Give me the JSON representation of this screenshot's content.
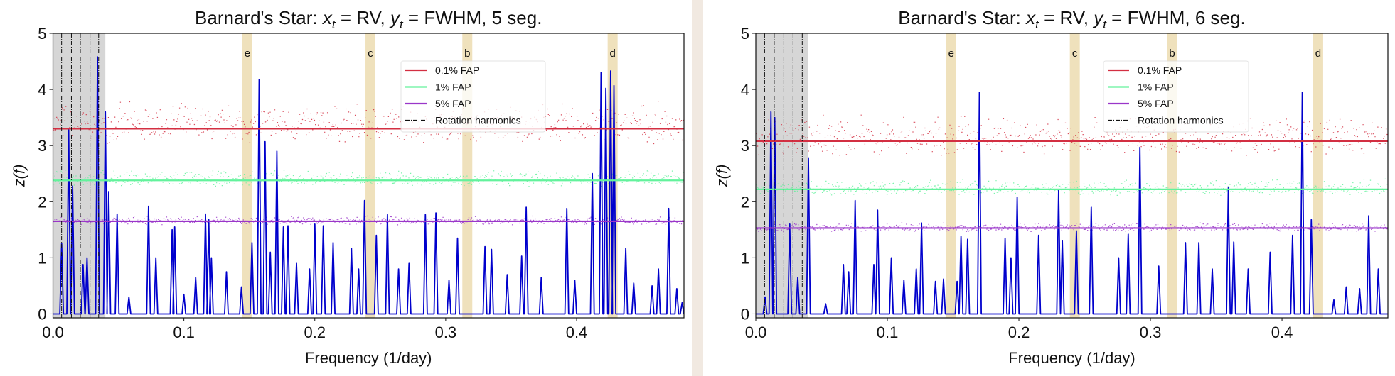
{
  "chart_data": [
    {
      "type": "line",
      "title": "Barnard's Star: x_t =  RV, y_t =  FWHM, 5 seg.",
      "title_parts": {
        "prefix": "Barnard's Star: ",
        "x": "x",
        "xsub": "t",
        "eq1": " =  RV, ",
        "y": "y",
        "ysub": "t",
        "eq2": " =  FWHM, 5 seg."
      },
      "xlabel": "Frequency (1/day)",
      "ylabel": "z(f)",
      "xlim": [
        0,
        0.482
      ],
      "ylim": [
        -0.07,
        5
      ],
      "xticks": [
        "0.0",
        "0.1",
        "0.2",
        "0.3",
        "0.4"
      ],
      "xtick_values": [
        0,
        0.1,
        0.2,
        0.3,
        0.4
      ],
      "yticks": [
        "0",
        "1",
        "2",
        "3",
        "4",
        "5"
      ],
      "legend": {
        "placement": "upper-center-right",
        "entries": [
          "0.1% FAP",
          "1% FAP",
          "5% FAP",
          "Rotation harmonics"
        ]
      },
      "fap_levels": [
        {
          "name": "0.1% FAP",
          "value": 3.3,
          "color": "#d32f42"
        },
        {
          "name": "1% FAP",
          "value": 2.38,
          "color": "#63f29c"
        },
        {
          "name": "5% FAP",
          "value": 1.65,
          "color": "#9a36c9"
        }
      ],
      "rotation_region": [
        0,
        0.04
      ],
      "rotation_harmonics": [
        0.0066,
        0.0141,
        0.0209,
        0.0283,
        0.0349
      ],
      "planets": [
        {
          "label": "e",
          "freq": 0.1485
        },
        {
          "label": "c",
          "freq": 0.2425
        },
        {
          "label": "b",
          "freq": 0.3165
        },
        {
          "label": "d",
          "freq": 0.4275
        }
      ],
      "series_color": "#0000cc",
      "peaks": [
        [
          0.0066,
          1.25
        ],
        [
          0.012,
          3.28
        ],
        [
          0.015,
          2.28
        ],
        [
          0.023,
          0.88
        ],
        [
          0.026,
          1.0
        ],
        [
          0.034,
          4.58
        ],
        [
          0.04,
          3.6
        ],
        [
          0.0426,
          2.18
        ],
        [
          0.049,
          1.78
        ],
        [
          0.058,
          0.3
        ],
        [
          0.073,
          1.92
        ],
        [
          0.0786,
          1.0
        ],
        [
          0.091,
          1.5
        ],
        [
          0.093,
          1.55
        ],
        [
          0.1,
          0.35
        ],
        [
          0.109,
          0.65
        ],
        [
          0.1165,
          1.78
        ],
        [
          0.119,
          1.68
        ],
        [
          0.121,
          1.0
        ],
        [
          0.1325,
          0.75
        ],
        [
          0.144,
          0.48
        ],
        [
          0.152,
          1.27
        ],
        [
          0.1575,
          4.18
        ],
        [
          0.162,
          3.07
        ],
        [
          0.166,
          1.1
        ],
        [
          0.171,
          2.9
        ],
        [
          0.176,
          1.55
        ],
        [
          0.1795,
          1.57
        ],
        [
          0.186,
          0.9
        ],
        [
          0.196,
          0.8
        ],
        [
          0.2,
          1.6
        ],
        [
          0.2065,
          1.57
        ],
        [
          0.214,
          1.27
        ],
        [
          0.228,
          1.17
        ],
        [
          0.2335,
          0.8
        ],
        [
          0.238,
          2.02
        ],
        [
          0.247,
          1.4
        ],
        [
          0.2555,
          1.77
        ],
        [
          0.264,
          0.8
        ],
        [
          0.272,
          0.9
        ],
        [
          0.2845,
          1.77
        ],
        [
          0.2925,
          1.8
        ],
        [
          0.3025,
          0.6
        ],
        [
          0.309,
          1.35
        ],
        [
          0.33,
          1.2
        ],
        [
          0.335,
          1.15
        ],
        [
          0.347,
          0.7
        ],
        [
          0.358,
          1.03
        ],
        [
          0.3615,
          1.9
        ],
        [
          0.373,
          0.65
        ],
        [
          0.3925,
          1.88
        ],
        [
          0.3986,
          0.6
        ],
        [
          0.412,
          2.5
        ],
        [
          0.4187,
          4.3
        ],
        [
          0.4223,
          4.02
        ],
        [
          0.426,
          4.33
        ],
        [
          0.4285,
          4.07
        ],
        [
          0.4375,
          1.17
        ],
        [
          0.4436,
          0.55
        ],
        [
          0.4576,
          0.5
        ],
        [
          0.4625,
          0.8
        ],
        [
          0.4703,
          1.88
        ],
        [
          0.4765,
          0.45
        ],
        [
          0.4806,
          0.2
        ]
      ]
    },
    {
      "type": "line",
      "title": "Barnard's Star: x_t =  RV, y_t =  FWHM, 6 seg.",
      "title_parts": {
        "prefix": "Barnard's Star: ",
        "x": "x",
        "xsub": "t",
        "eq1": " =  RV, ",
        "y": "y",
        "ysub": "t",
        "eq2": " =  FWHM, 6 seg."
      },
      "xlabel": "Frequency (1/day)",
      "ylabel": "z(f)",
      "xlim": [
        0,
        0.4805
      ],
      "ylim": [
        -0.07,
        5
      ],
      "xticks": [
        "0.0",
        "0.1",
        "0.2",
        "0.3",
        "0.4"
      ],
      "xtick_values": [
        0,
        0.1,
        0.2,
        0.3,
        0.4
      ],
      "yticks": [
        "0",
        "1",
        "2",
        "3",
        "4",
        "5"
      ],
      "legend": {
        "placement": "upper-center-right",
        "entries": [
          "0.1% FAP",
          "1% FAP",
          "5% FAP",
          "Rotation harmonics"
        ]
      },
      "fap_levels": [
        {
          "name": "0.1% FAP",
          "value": 3.08,
          "color": "#d32f42"
        },
        {
          "name": "1% FAP",
          "value": 2.22,
          "color": "#63f29c"
        },
        {
          "name": "5% FAP",
          "value": 1.53,
          "color": "#9a36c9"
        }
      ],
      "rotation_region": [
        0,
        0.04
      ],
      "rotation_harmonics": [
        0.0067,
        0.014,
        0.0213,
        0.0283,
        0.0353
      ],
      "planets": [
        {
          "label": "e",
          "freq": 0.1485
        },
        {
          "label": "c",
          "freq": 0.2425
        },
        {
          "label": "b",
          "freq": 0.3165
        },
        {
          "label": "d",
          "freq": 0.4275
        }
      ],
      "series_color": "#0000cc",
      "peaks": [
        [
          0.007,
          0.3
        ],
        [
          0.0115,
          3.6
        ],
        [
          0.0144,
          3.5
        ],
        [
          0.0258,
          1.6
        ],
        [
          0.0319,
          0.65
        ],
        [
          0.04,
          2.77
        ],
        [
          0.0531,
          0.18
        ],
        [
          0.0666,
          0.88
        ],
        [
          0.0706,
          0.75
        ],
        [
          0.0755,
          2.02
        ],
        [
          0.0897,
          0.88
        ],
        [
          0.0926,
          1.85
        ],
        [
          0.103,
          1.0
        ],
        [
          0.1126,
          0.6
        ],
        [
          0.122,
          0.8
        ],
        [
          0.126,
          1.62
        ],
        [
          0.1366,
          0.58
        ],
        [
          0.1427,
          0.62
        ],
        [
          0.153,
          0.58
        ],
        [
          0.156,
          1.38
        ],
        [
          0.161,
          1.33
        ],
        [
          0.17,
          3.95
        ],
        [
          0.1895,
          1.35
        ],
        [
          0.194,
          1.0
        ],
        [
          0.1987,
          2.08
        ],
        [
          0.215,
          1.4
        ],
        [
          0.2302,
          2.2
        ],
        [
          0.233,
          1.3
        ],
        [
          0.2437,
          1.48
        ],
        [
          0.255,
          1.9
        ],
        [
          0.2758,
          1.0
        ],
        [
          0.2831,
          1.42
        ],
        [
          0.292,
          2.97
        ],
        [
          0.3063,
          0.85
        ],
        [
          0.3266,
          1.27
        ],
        [
          0.3368,
          1.27
        ],
        [
          0.347,
          0.8
        ],
        [
          0.3592,
          2.25
        ],
        [
          0.3633,
          1.28
        ],
        [
          0.3743,
          0.8
        ],
        [
          0.391,
          1.1
        ],
        [
          0.408,
          1.4
        ],
        [
          0.4154,
          3.95
        ],
        [
          0.4223,
          1.68
        ],
        [
          0.4394,
          0.25
        ],
        [
          0.4488,
          0.48
        ],
        [
          0.459,
          0.45
        ],
        [
          0.4659,
          1.75
        ],
        [
          0.4732,
          0.8
        ]
      ]
    }
  ]
}
